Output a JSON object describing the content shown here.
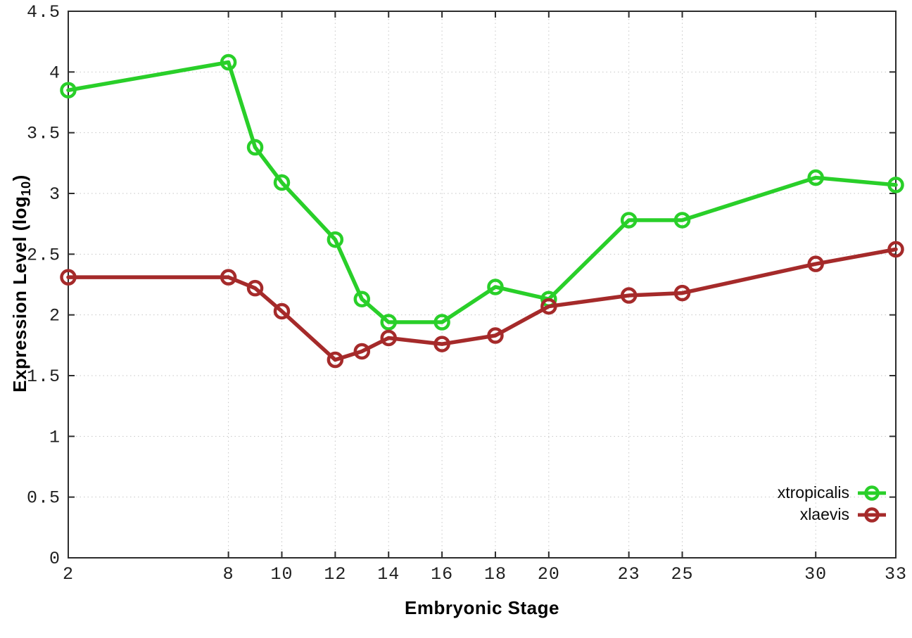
{
  "labels": {
    "ylabel_prefix": "Expression Level (log",
    "ylabel_sub": "10",
    "ylabel_suffix": ")"
  },
  "chart_data": {
    "type": "line",
    "title": "",
    "xlabel": "Embryonic Stage",
    "ylabel": "Expression Level (log10)",
    "x": [
      2,
      8,
      9,
      10,
      12,
      13,
      14,
      16,
      18,
      20,
      23,
      25,
      30,
      33
    ],
    "series": [
      {
        "name": "xtropicalis",
        "color": "#29cf29",
        "values": [
          3.85,
          4.08,
          3.38,
          3.09,
          2.62,
          2.13,
          1.94,
          1.94,
          2.23,
          2.13,
          2.78,
          2.78,
          3.13,
          3.07
        ]
      },
      {
        "name": "xlaevis",
        "color": "#a52a2a",
        "values": [
          2.31,
          2.31,
          2.22,
          2.03,
          1.63,
          1.7,
          1.81,
          1.76,
          1.83,
          2.07,
          2.16,
          2.18,
          2.42,
          2.54
        ]
      }
    ],
    "xlim": [
      2,
      33
    ],
    "ylim": [
      0,
      4.5
    ],
    "xticks": [
      2,
      8,
      10,
      12,
      14,
      16,
      18,
      20,
      23,
      25,
      30,
      33
    ],
    "xtick_labels": [
      "2",
      "8",
      "10",
      "12",
      "14",
      "16",
      "18",
      "20",
      "23",
      "25",
      "30",
      "33"
    ],
    "yticks": [
      0,
      0.5,
      1,
      1.5,
      2,
      2.5,
      3,
      3.5,
      4,
      4.5
    ],
    "ytick_labels": [
      "0",
      "0.5",
      "1",
      "1.5",
      "2",
      "2.5",
      "3",
      "3.5",
      "4",
      "4.5"
    ],
    "grid": true,
    "legend_position": "inside-right",
    "marker": "open-circle",
    "colors": {
      "grid": "#c6c6c6",
      "border": "#2d2d2d",
      "tick_text": "#1f1f1f"
    }
  }
}
